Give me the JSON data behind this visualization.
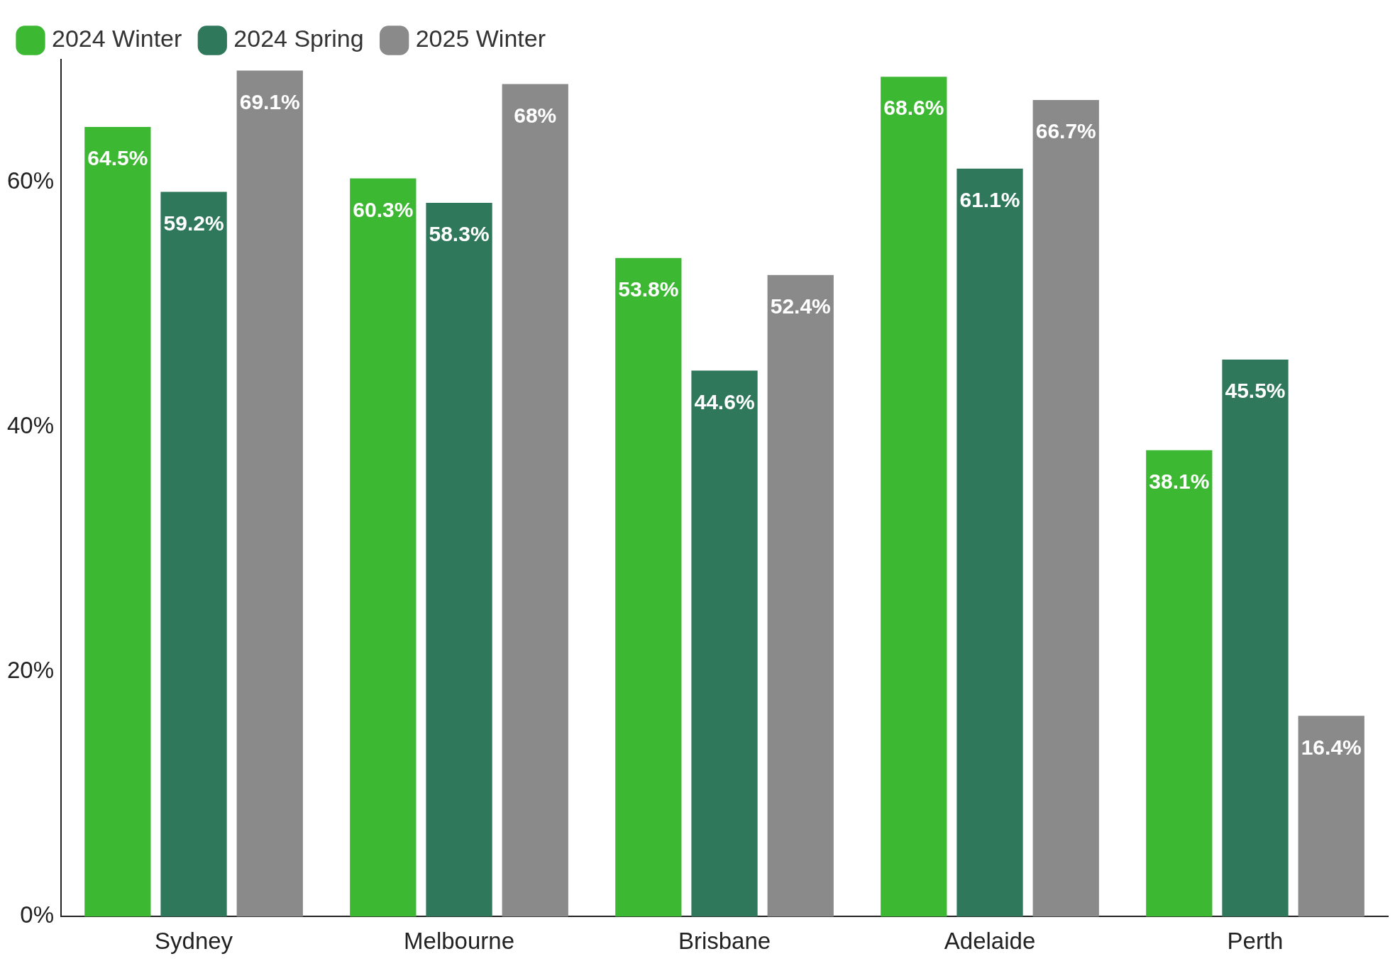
{
  "chart_data": {
    "type": "bar",
    "categories": [
      "Sydney",
      "Melbourne",
      "Brisbane",
      "Adelaide",
      "Perth"
    ],
    "series": [
      {
        "name": "2024 Winter",
        "color": "#3cb832",
        "values": [
          64.5,
          60.3,
          53.8,
          68.6,
          38.1
        ],
        "value_labels": [
          "64.5%",
          "60.3%",
          "53.8%",
          "68.6%",
          "38.1%"
        ]
      },
      {
        "name": "2024 Spring",
        "color": "#30785c",
        "values": [
          59.2,
          58.3,
          44.6,
          61.1,
          45.5
        ],
        "value_labels": [
          "59.2%",
          "58.3%",
          "44.6%",
          "61.1%",
          "45.5%"
        ]
      },
      {
        "name": "2025 Winter",
        "color": "#8a8a8a",
        "values": [
          69.1,
          68,
          52.4,
          66.7,
          16.4
        ],
        "value_labels": [
          "69.1%",
          "68%",
          "52.4%",
          "66.7%",
          "16.4%"
        ]
      }
    ],
    "ylim": [
      0,
      70
    ],
    "yticks": [
      {
        "value": 0,
        "label": "0%"
      },
      {
        "value": 20,
        "label": "20%"
      },
      {
        "value": 40,
        "label": "40%"
      },
      {
        "value": 60,
        "label": "60%"
      }
    ],
    "grid": false,
    "legend": "top left"
  }
}
